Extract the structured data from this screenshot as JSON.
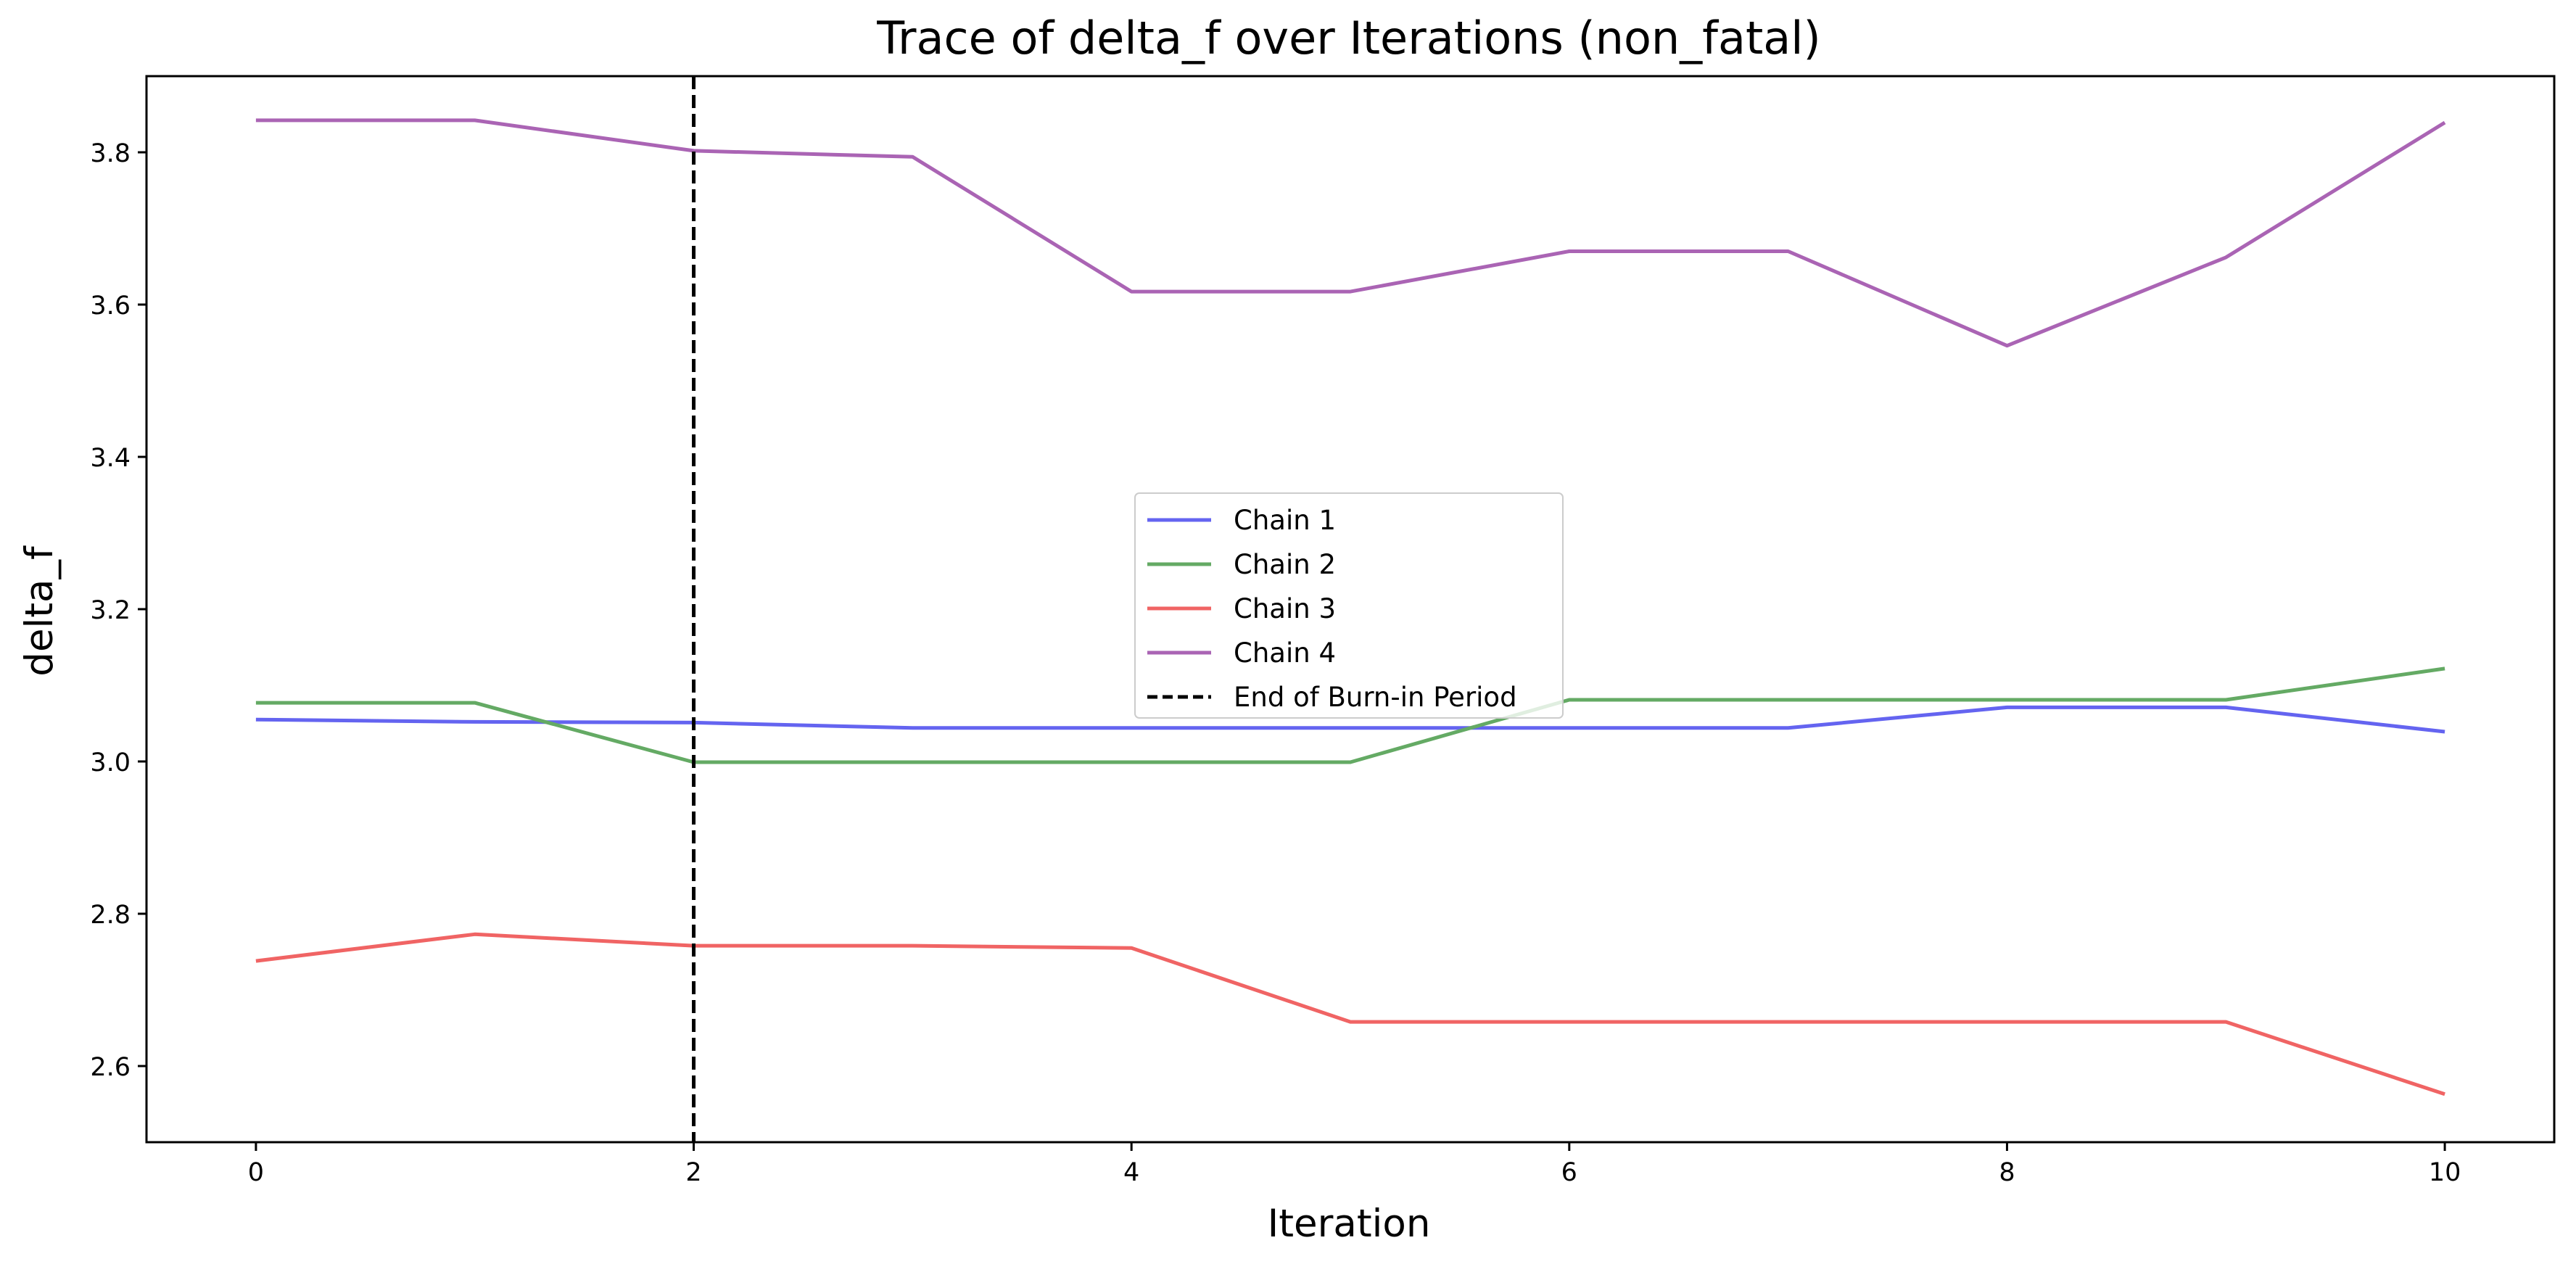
{
  "chart_data": {
    "type": "line",
    "title": "Trace of delta_f over Iterations (non_fatal)",
    "xlabel": "Iteration",
    "ylabel": "delta_f",
    "xlim": [
      -0.5,
      10.5
    ],
    "ylim": [
      2.5,
      3.9
    ],
    "x_ticks": [
      0,
      2,
      4,
      6,
      8,
      10
    ],
    "y_ticks": [
      2.6,
      2.8,
      3.0,
      3.2,
      3.4,
      3.6,
      3.8
    ],
    "grid": false,
    "legend_position": "center",
    "x": [
      0,
      1,
      2,
      3,
      4,
      5,
      6,
      7,
      8,
      9,
      10
    ],
    "series": [
      {
        "name": "Chain 1",
        "color": "#6464f0",
        "values": [
          3.055,
          3.052,
          3.051,
          3.044,
          3.044,
          3.044,
          3.044,
          3.044,
          3.071,
          3.071,
          3.039
        ]
      },
      {
        "name": "Chain 2",
        "color": "#64aa64",
        "values": [
          3.077,
          3.077,
          2.999,
          2.999,
          2.999,
          2.999,
          3.081,
          3.081,
          3.081,
          3.081,
          3.122
        ]
      },
      {
        "name": "Chain 3",
        "color": "#f06464",
        "values": [
          2.738,
          2.773,
          2.758,
          2.758,
          2.755,
          2.658,
          2.658,
          2.658,
          2.658,
          2.658,
          2.563
        ]
      },
      {
        "name": "Chain 4",
        "color": "#aa64b4",
        "values": [
          3.842,
          3.842,
          3.802,
          3.794,
          3.617,
          3.617,
          3.67,
          3.67,
          3.546,
          3.662,
          3.839
        ]
      }
    ],
    "vline": {
      "x": 2,
      "label": "End of Burn-in Period",
      "color": "#000000",
      "style": "dashed"
    }
  }
}
